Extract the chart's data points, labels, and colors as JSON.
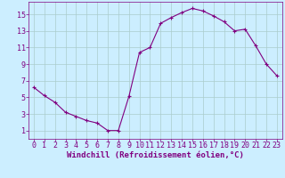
{
  "x": [
    0,
    1,
    2,
    3,
    4,
    5,
    6,
    7,
    8,
    9,
    10,
    11,
    12,
    13,
    14,
    15,
    16,
    17,
    18,
    19,
    20,
    21,
    22,
    23
  ],
  "y": [
    6.2,
    5.2,
    4.4,
    3.2,
    2.7,
    2.2,
    1.9,
    1.0,
    1.0,
    5.1,
    10.4,
    11.0,
    13.9,
    14.6,
    15.2,
    15.7,
    15.4,
    14.8,
    14.1,
    13.0,
    13.2,
    11.2,
    9.0,
    7.6
  ],
  "line_color": "#800080",
  "marker": "+",
  "bg_color": "#cceeff",
  "grid_color": "#aacccc",
  "spine_color": "#800080",
  "tick_color": "#800080",
  "label_color": "#800080",
  "xlabel": "Windchill (Refroidissement éolien,°C)",
  "xlim": [
    -0.5,
    23.5
  ],
  "ylim": [
    0,
    16.5
  ],
  "yticks": [
    1,
    3,
    5,
    7,
    9,
    11,
    13,
    15
  ],
  "xticks": [
    0,
    1,
    2,
    3,
    4,
    5,
    6,
    7,
    8,
    9,
    10,
    11,
    12,
    13,
    14,
    15,
    16,
    17,
    18,
    19,
    20,
    21,
    22,
    23
  ],
  "tick_fontsize": 6.0,
  "xlabel_fontsize": 6.5,
  "line_width": 0.8,
  "marker_size": 3.0
}
